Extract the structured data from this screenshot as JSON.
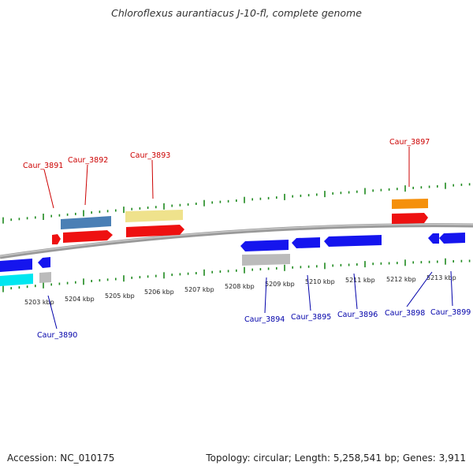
{
  "title": "Chloroflexus aurantiacus J-10-fl, complete genome",
  "accession": "Accession: NC_010175",
  "summary": "Topology: circular; Length: 5,258,541 bp; Genes: 3,911",
  "colors": {
    "forward_label": "#cc0000",
    "reverse_label": "#0000aa",
    "backbone": "#888888",
    "tick": "#1f8a1f"
  },
  "scale_labels": [
    "5203 kbp",
    "5204 kbp",
    "5205 kbp",
    "5206 kbp",
    "5207 kbp",
    "5208 kbp",
    "5209 kbp",
    "5210 kbp",
    "5211 kbp",
    "5212 kbp",
    "5213 kbp"
  ],
  "gene_labels": [
    {
      "id": "caur3891",
      "text": "Caur_3891",
      "strand": "forward"
    },
    {
      "id": "caur3892",
      "text": "Caur_3892",
      "strand": "forward"
    },
    {
      "id": "caur3893",
      "text": "Caur_3893",
      "strand": "forward"
    },
    {
      "id": "caur3897",
      "text": "Caur_3897",
      "strand": "forward"
    },
    {
      "id": "caur3890",
      "text": "Caur_3890",
      "strand": "reverse"
    },
    {
      "id": "caur3894",
      "text": "Caur_3894",
      "strand": "reverse"
    },
    {
      "id": "caur3895",
      "text": "Caur_3895",
      "strand": "reverse"
    },
    {
      "id": "caur3896",
      "text": "Caur_3896",
      "strand": "reverse"
    },
    {
      "id": "caur3898",
      "text": "Caur_3898",
      "strand": "reverse"
    },
    {
      "id": "caur3899",
      "text": "Caur_3899",
      "strand": "reverse"
    }
  ],
  "feature_colors": {
    "forward_cds": "#ee1111",
    "forward_alt_steelblue": "#4a7fb5",
    "forward_alt_khaki": "#efe28c",
    "forward_alt_orange": "#f5900c",
    "reverse_cds": "#1515ee",
    "reverse_alt_cyan": "#00e6f0",
    "reverse_alt_gray": "#bbbbbb"
  }
}
